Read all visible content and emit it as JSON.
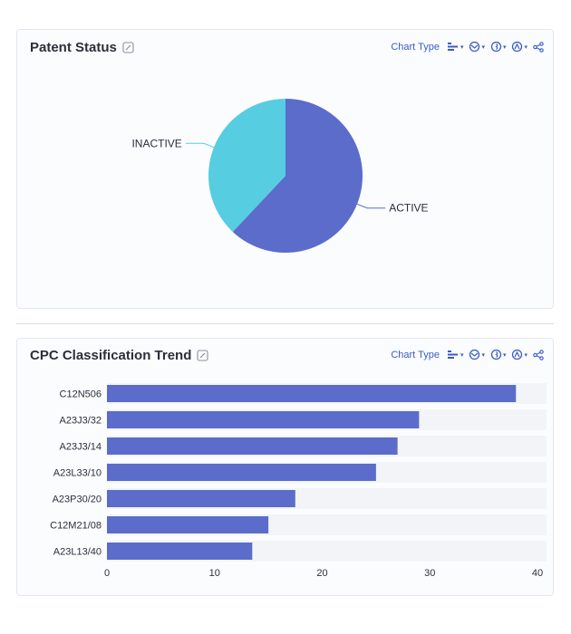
{
  "patent_card": {
    "title": "Patent Status",
    "toolbar": {
      "chart_type_label": "Chart Type"
    }
  },
  "cpc_card": {
    "title": "CPC Classification Trend",
    "toolbar": {
      "chart_type_label": "Chart Type"
    }
  },
  "icons": [
    "edit-icon",
    "bar-chart-icon",
    "globe-icon",
    "pie-icon",
    "line-icon",
    "share-icon"
  ],
  "colors": {
    "active": "#5b6ccb",
    "inactive": "#56cde0",
    "bar": "#5b6ccb",
    "accent": "#3a5cc6"
  },
  "chart_data": [
    {
      "type": "pie",
      "title": "Patent Status",
      "slices": [
        {
          "label": "ACTIVE",
          "value": 62,
          "color": "#5b6ccb"
        },
        {
          "label": "INACTIVE",
          "value": 38,
          "color": "#56cde0"
        }
      ]
    },
    {
      "type": "bar",
      "orientation": "horizontal",
      "title": "CPC Classification Trend",
      "categories": [
        "C12N506",
        "A23J3/32",
        "A23J3/14",
        "A23L33/10",
        "A23P30/20",
        "C12M21/08",
        "A23L13/40"
      ],
      "values": [
        38,
        29,
        27,
        25,
        17.5,
        15,
        13.5
      ],
      "xlim": [
        0,
        40
      ],
      "xticks": [
        0,
        10,
        20,
        30,
        40
      ],
      "grid": false,
      "color": "#5b6ccb"
    }
  ]
}
